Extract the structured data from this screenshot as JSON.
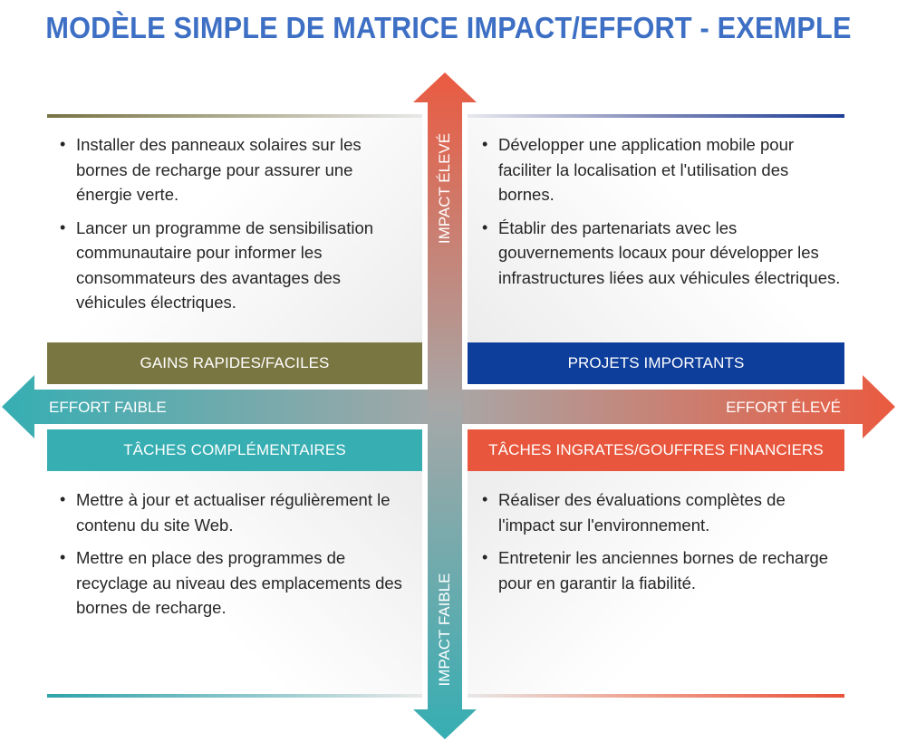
{
  "title": "MODÈLE SIMPLE DE MATRICE IMPACT/EFFORT - EXEMPLE",
  "axes": {
    "impact_high": "IMPACT ÉLEVÉ",
    "impact_low": "IMPACT FAIBLE",
    "effort_low": "EFFORT FAIBLE",
    "effort_high": "EFFORT ÉLEVÉ"
  },
  "quadrants": {
    "top_left": {
      "label": "GAINS RAPIDES/FACILES",
      "color": "#7a7642",
      "items": [
        "Installer des panneaux solaires sur les bornes de recharge pour assurer une énergie verte.",
        "Lancer un programme de sensibilisation communautaire pour informer les consommateurs des avantages des véhicules électriques."
      ]
    },
    "top_right": {
      "label": "PROJETS IMPORTANTS",
      "color": "#0e3e9b",
      "items": [
        "Développer une application mobile pour faciliter la localisation et l'utilisation des bornes.",
        "Établir des partenariats avec les gouvernements locaux pour développer les infrastructures liées aux véhicules électriques."
      ]
    },
    "bottom_left": {
      "label": "TÂCHES COMPLÉMENTAIRES",
      "color": "#36aeb2",
      "items": [
        "Mettre à jour et actualiser régulièrement le contenu du site Web.",
        "Mettre en place des programmes de recyclage au niveau des emplacements des bornes de recharge."
      ]
    },
    "bottom_right": {
      "label": "TÂCHES INGRATES/GOUFFRES FINANCIERS",
      "color": "#e8573d",
      "items": [
        "Réaliser des évaluations complètes de l'impact sur l'environnement.",
        "Entretenir les anciennes bornes de recharge pour en garantir la fiabilité."
      ]
    }
  }
}
